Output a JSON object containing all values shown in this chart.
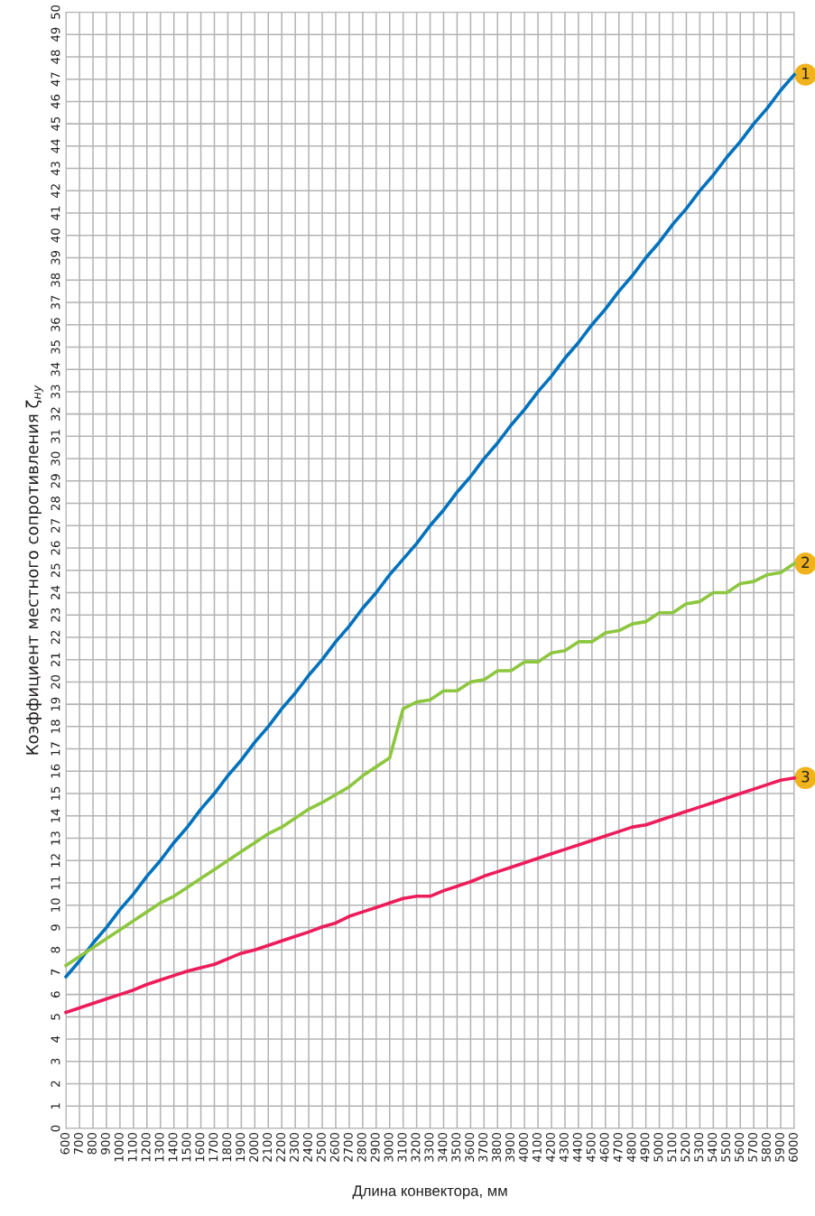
{
  "chart_data": {
    "type": "line",
    "xlabel": "Длина конвектора, мм",
    "ylabel": "Коэффициент местного сопротивления ζ$_{ну}$",
    "x": [
      600,
      700,
      800,
      900,
      1000,
      1100,
      1200,
      1300,
      1400,
      1500,
      1600,
      1700,
      1800,
      1900,
      2000,
      2100,
      2200,
      2300,
      2400,
      2500,
      2600,
      2700,
      2800,
      2900,
      3000,
      3100,
      3200,
      3300,
      3400,
      3500,
      3600,
      3700,
      3800,
      3900,
      4000,
      4100,
      4200,
      4300,
      4400,
      4500,
      4600,
      4700,
      4800,
      4900,
      5000,
      5100,
      5200,
      5300,
      5400,
      5500,
      5600,
      5700,
      5800,
      5900,
      6000
    ],
    "series": [
      {
        "name": "1",
        "color": "#0072bc",
        "values": [
          6.8,
          7.5,
          8.3,
          9.0,
          9.8,
          10.5,
          11.3,
          12.0,
          12.8,
          13.5,
          14.3,
          15.0,
          15.8,
          16.5,
          17.3,
          18.0,
          18.8,
          19.5,
          20.3,
          21.0,
          21.8,
          22.5,
          23.3,
          24.0,
          24.8,
          25.5,
          26.2,
          27.0,
          27.7,
          28.5,
          29.2,
          30.0,
          30.7,
          31.5,
          32.2,
          33.0,
          33.7,
          34.5,
          35.2,
          36.0,
          36.7,
          37.5,
          38.2,
          39.0,
          39.7,
          40.5,
          41.2,
          42.0,
          42.7,
          43.5,
          44.2,
          45.0,
          45.7,
          46.5,
          47.2
        ]
      },
      {
        "name": "2",
        "color": "#8dc63f",
        "values": [
          7.3,
          7.7,
          8.1,
          8.5,
          8.9,
          9.3,
          9.7,
          10.1,
          10.4,
          10.8,
          11.2,
          11.6,
          12.0,
          12.4,
          12.8,
          13.2,
          13.5,
          13.9,
          14.3,
          14.6,
          14.95,
          15.3,
          15.8,
          16.2,
          16.6,
          18.8,
          19.1,
          19.2,
          19.6,
          19.6,
          20.0,
          20.1,
          20.5,
          20.5,
          20.9,
          20.9,
          21.3,
          21.4,
          21.8,
          21.8,
          22.2,
          22.3,
          22.6,
          22.7,
          23.1,
          23.1,
          23.5,
          23.6,
          24.0,
          24.0,
          24.4,
          24.5,
          24.8,
          24.9,
          25.3
        ]
      },
      {
        "name": "3",
        "color": "#ed1c5a",
        "values": [
          5.2,
          5.4,
          5.6,
          5.8,
          6.0,
          6.2,
          6.45,
          6.65,
          6.85,
          7.05,
          7.2,
          7.35,
          7.6,
          7.85,
          8.0,
          8.2,
          8.4,
          8.6,
          8.8,
          9.03,
          9.2,
          9.5,
          9.7,
          9.9,
          10.1,
          10.3,
          10.4,
          10.4,
          10.65,
          10.85,
          11.05,
          11.3,
          11.5,
          11.7,
          11.9,
          12.1,
          12.3,
          12.5,
          12.7,
          12.9,
          13.1,
          13.3,
          13.5,
          13.6,
          13.8,
          14.0,
          14.2,
          14.4,
          14.6,
          14.8,
          15.0,
          15.2,
          15.4,
          15.6,
          15.7
        ]
      }
    ],
    "xlim": [
      600,
      6000
    ],
    "xticks": [
      600,
      700,
      800,
      900,
      1000,
      1100,
      1200,
      1300,
      1400,
      1500,
      1600,
      1700,
      1800,
      1900,
      2000,
      2100,
      2200,
      2300,
      2400,
      2500,
      2600,
      2700,
      2800,
      2900,
      3000,
      3100,
      3200,
      3300,
      3400,
      3500,
      3600,
      3700,
      3800,
      3900,
      4000,
      4100,
      4200,
      4300,
      4400,
      4500,
      4600,
      4700,
      4800,
      4900,
      5000,
      5100,
      5200,
      5300,
      5400,
      5500,
      5600,
      5700,
      5800,
      5900,
      6000
    ],
    "ylim": [
      0,
      50
    ],
    "yticks": [
      0,
      1,
      2,
      3,
      4,
      5,
      6,
      7,
      8,
      9,
      10,
      11,
      12,
      13,
      14,
      15,
      16,
      17,
      18,
      19,
      20,
      21,
      22,
      23,
      24,
      25,
      26,
      27,
      28,
      29,
      30,
      31,
      32,
      33,
      34,
      35,
      36,
      37,
      38,
      39,
      40,
      41,
      42,
      43,
      44,
      45,
      46,
      47,
      48,
      49,
      50
    ],
    "grid": true,
    "legend": false,
    "marker": "none",
    "line_style": "solid"
  }
}
